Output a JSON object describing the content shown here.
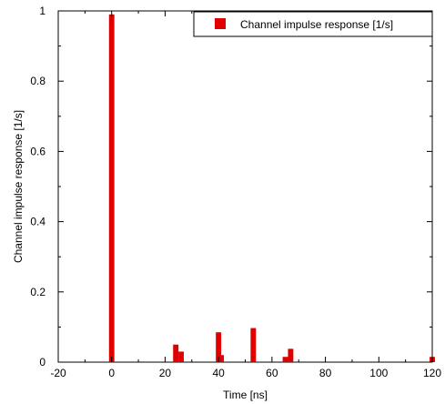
{
  "chart_data": {
    "type": "bar",
    "xlabel": "Time [ns]",
    "ylabel": "Channel impulse response [1/s]",
    "xlim": [
      -20,
      120
    ],
    "ylim": [
      0,
      1
    ],
    "xticks": [
      -20,
      0,
      20,
      40,
      60,
      80,
      100,
      120
    ],
    "yticks": [
      0,
      0.2,
      0.4,
      0.6,
      0.8,
      1
    ],
    "legend_position": "top-right",
    "grid": false,
    "series": [
      {
        "name": "Channel impulse response [1/s]",
        "color": "#e00000",
        "bar_width_units": 2,
        "points": [
          {
            "x": 0,
            "y": 0.99
          },
          {
            "x": 24,
            "y": 0.05
          },
          {
            "x": 26,
            "y": 0.03
          },
          {
            "x": 40,
            "y": 0.085
          },
          {
            "x": 41,
            "y": 0.02
          },
          {
            "x": 53,
            "y": 0.097
          },
          {
            "x": 65,
            "y": 0.015
          },
          {
            "x": 67,
            "y": 0.038
          },
          {
            "x": 120,
            "y": 0.015
          }
        ]
      }
    ]
  }
}
